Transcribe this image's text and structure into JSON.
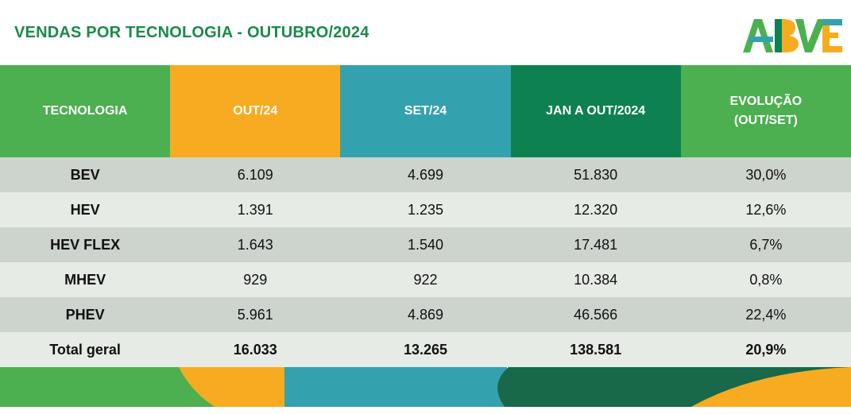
{
  "title": "VENDAS POR TECNOLOGIA - OUTUBRO/2024",
  "logo_text": "ABVE",
  "colors": {
    "green": "#4caf50",
    "orange": "#f6ab20",
    "teal": "#34a1ae",
    "dark_green": "#0e8150",
    "title": "#1a8a4a"
  },
  "headers": [
    "TECNOLOGIA",
    "OUT/24",
    "SET/24",
    "JAN A OUT/2024",
    "EVOLUÇÃO\n(OUT/SET)"
  ],
  "header_evol_line1": "EVOLUÇÃO",
  "header_evol_line2": "(OUT/SET)",
  "rows": [
    [
      "BEV",
      "6.109",
      "4.699",
      "51.830",
      "30,0%"
    ],
    [
      "HEV",
      "1.391",
      "1.235",
      "12.320",
      "12,6%"
    ],
    [
      "HEV FLEX",
      "1.643",
      "1.540",
      "17.481",
      "6,7%"
    ],
    [
      "MHEV",
      "929",
      "922",
      "10.384",
      "0,8%"
    ],
    [
      "PHEV",
      "5.961",
      "4.869",
      "46.566",
      "22,4%"
    ],
    [
      "Total geral",
      "16.033",
      "13.265",
      "138.581",
      "20,9%"
    ]
  ]
}
